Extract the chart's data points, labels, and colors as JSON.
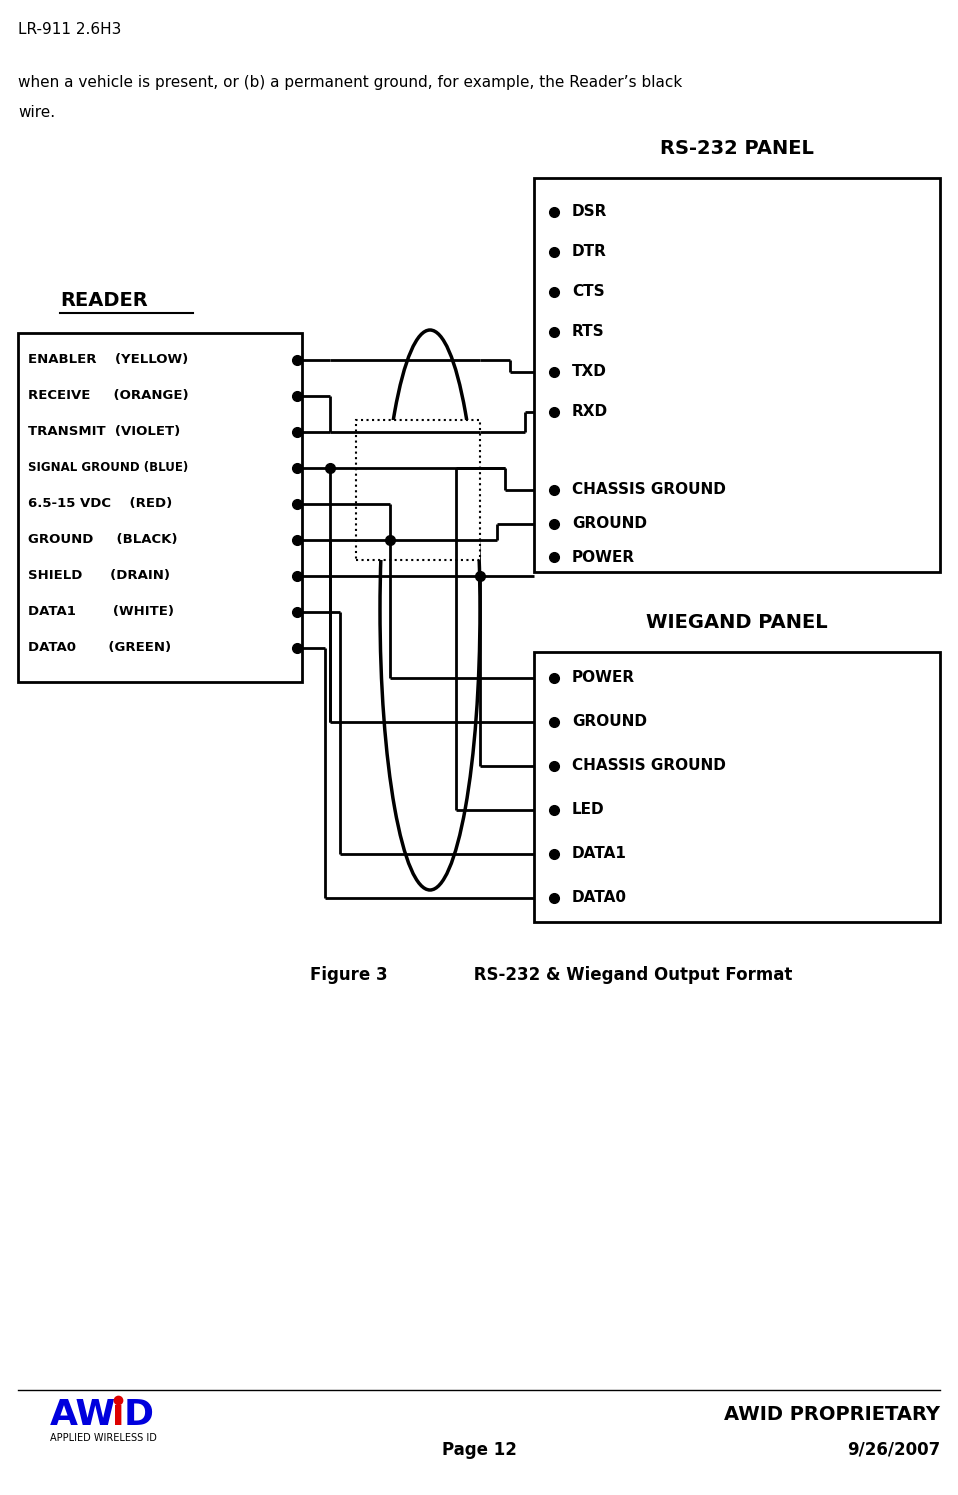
{
  "page_title": "LR-911 2.6H3",
  "body_text_line1": "when a vehicle is present, or (b) a permanent ground, for example, the Reader’s black",
  "body_text_line2": "wire.",
  "fig_caption_bold": "Figure 3",
  "fig_caption_rest": "     RS-232 & Wiegand Output Format",
  "footer_proprietary": "AWID PROPRIETARY",
  "footer_page": "Page 12",
  "footer_date": "9/26/2007",
  "reader_title": "READER",
  "rs232_title": "RS-232 PANEL",
  "wiegand_title": "WIEGAND PANEL",
  "reader_pins": [
    "ENABLER    (YELLOW)",
    "RECEIVE     (ORANGE)",
    "TRANSMIT  (VIOLET)",
    "SIGNAL GROUND (BLUE)",
    "6.5-15 VDC    (RED)",
    "GROUND     (BLACK)",
    "SHIELD      (DRAIN)",
    "DATA1        (WHITE)",
    "DATA0       (GREEN)"
  ],
  "rs232_pins_top": [
    "DSR",
    "DTR",
    "CTS",
    "RTS",
    "TXD",
    "RXD"
  ],
  "rs232_pins_bottom": [
    "CHASSIS GROUND",
    "GROUND",
    "POWER"
  ],
  "wiegand_pins": [
    "POWER",
    "GROUND",
    "CHASSIS GROUND",
    "LED",
    "DATA1",
    "DATA0"
  ],
  "bg_color": "#ffffff",
  "text_color": "#000000",
  "line_color": "#000000"
}
